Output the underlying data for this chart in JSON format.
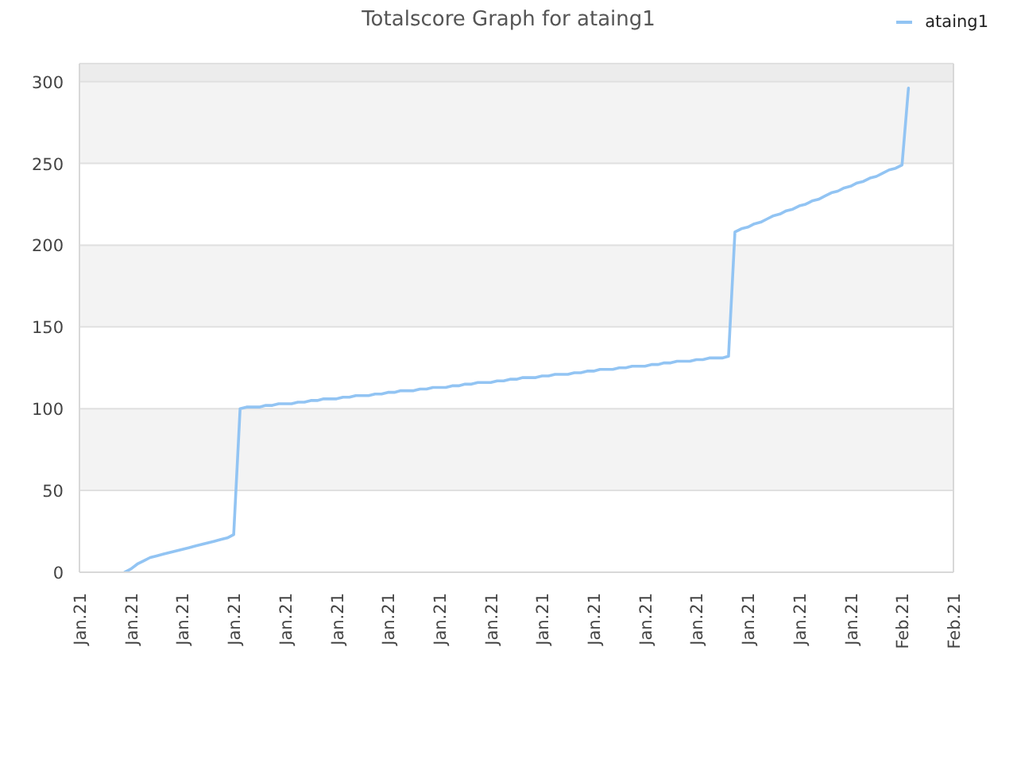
{
  "chart_data": {
    "type": "line",
    "title": "Totalscore Graph for ataing1",
    "categories": [
      "Jan.21",
      null,
      null,
      null,
      null,
      null,
      null,
      null,
      "Jan.21",
      null,
      null,
      null,
      null,
      null,
      null,
      null,
      "Jan.21",
      null,
      null,
      null,
      null,
      null,
      null,
      null,
      "Jan.21",
      null,
      null,
      null,
      null,
      null,
      null,
      null,
      "Jan.21",
      null,
      null,
      null,
      null,
      null,
      null,
      null,
      "Jan.21",
      null,
      null,
      null,
      null,
      null,
      null,
      null,
      "Jan.21",
      null,
      null,
      null,
      null,
      null,
      null,
      null,
      "Jan.21",
      null,
      null,
      null,
      null,
      null,
      null,
      null,
      "Jan.21",
      null,
      null,
      null,
      null,
      null,
      null,
      null,
      "Jan.21",
      null,
      null,
      null,
      null,
      null,
      null,
      null,
      "Jan.21",
      null,
      null,
      null,
      null,
      null,
      null,
      null,
      "Jan.21",
      null,
      null,
      null,
      null,
      null,
      null,
      null,
      "Jan.21",
      null,
      null,
      null,
      null,
      null,
      null,
      null,
      "Jan.21",
      null,
      null,
      null,
      null,
      null,
      null,
      null,
      "Jan.21",
      null,
      null,
      null,
      null,
      null,
      null,
      null,
      "Jan.21",
      null,
      null,
      null,
      null,
      null,
      null,
      null,
      "Feb.21",
      null,
      null,
      null,
      null,
      null,
      null,
      null,
      "Feb.21"
    ],
    "series": [
      {
        "name": "ataing1",
        "color": "#92c4f3",
        "values": [
          null,
          null,
          null,
          null,
          null,
          null,
          null,
          0,
          2,
          5,
          7,
          9,
          10,
          11,
          12,
          13,
          14,
          15,
          16,
          17,
          18,
          19,
          20,
          21,
          23,
          100,
          101,
          101,
          101,
          102,
          102,
          103,
          103,
          103,
          104,
          104,
          105,
          105,
          106,
          106,
          106,
          107,
          107,
          108,
          108,
          108,
          109,
          109,
          110,
          110,
          111,
          111,
          111,
          112,
          112,
          113,
          113,
          113,
          114,
          114,
          115,
          115,
          116,
          116,
          116,
          117,
          117,
          118,
          118,
          119,
          119,
          119,
          120,
          120,
          121,
          121,
          121,
          122,
          122,
          123,
          123,
          124,
          124,
          124,
          125,
          125,
          126,
          126,
          126,
          127,
          127,
          128,
          128,
          129,
          129,
          129,
          130,
          130,
          131,
          131,
          131,
          132,
          208,
          210,
          211,
          213,
          214,
          216,
          218,
          219,
          221,
          222,
          224,
          225,
          227,
          228,
          230,
          232,
          233,
          235,
          236,
          238,
          239,
          241,
          242,
          244,
          246,
          247,
          249,
          296,
          null,
          null,
          null,
          null,
          null,
          null,
          null
        ]
      }
    ],
    "ylim": [
      0,
      311
    ],
    "yticks": [
      0,
      50,
      100,
      150,
      200,
      250,
      300
    ],
    "grid": "y",
    "legend": "top right",
    "line_style": "solid"
  }
}
